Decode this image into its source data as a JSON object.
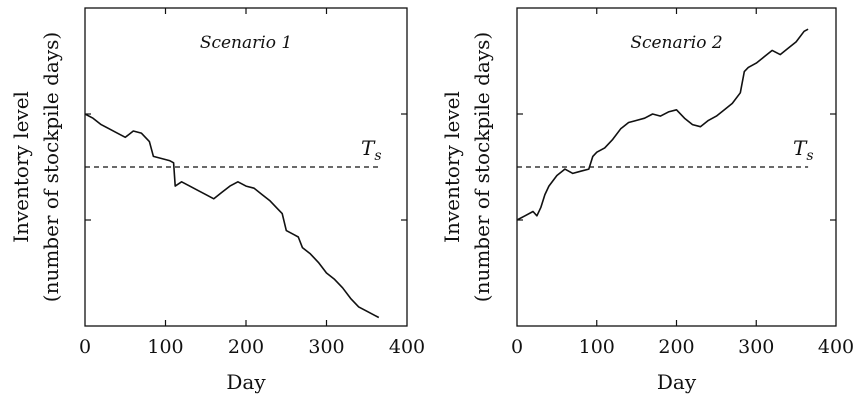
{
  "chart_data": [
    {
      "type": "line",
      "title": "Scenario 1",
      "xlabel": "Day",
      "ylabel_line1": "Inventory level",
      "ylabel_line2": "(number of stockpile days)",
      "xlim": [
        0,
        400
      ],
      "xticks": [
        "0",
        "100",
        "200",
        "300",
        "400"
      ],
      "ylim": [
        0,
        1.5
      ],
      "yticks": [
        0.5,
        1.0
      ],
      "threshold": {
        "label": "T",
        "subscript": "s",
        "value": 0.75
      },
      "series": [
        {
          "x": [
            0,
            10,
            20,
            30,
            40,
            50,
            60,
            70,
            80,
            85,
            95,
            105,
            110,
            112,
            120,
            130,
            140,
            150,
            160,
            170,
            180,
            190,
            200,
            210,
            220,
            230,
            240,
            245,
            250,
            260,
            265,
            270,
            280,
            290,
            300,
            310,
            320,
            330,
            340,
            350,
            360,
            365
          ],
          "y": [
            1.0,
            0.98,
            0.95,
            0.93,
            0.91,
            0.89,
            0.92,
            0.91,
            0.87,
            0.8,
            0.79,
            0.78,
            0.77,
            0.66,
            0.68,
            0.66,
            0.64,
            0.62,
            0.6,
            0.63,
            0.66,
            0.68,
            0.66,
            0.65,
            0.62,
            0.59,
            0.55,
            0.53,
            0.45,
            0.43,
            0.42,
            0.37,
            0.34,
            0.3,
            0.25,
            0.22,
            0.18,
            0.13,
            0.09,
            0.07,
            0.05,
            0.04
          ]
        }
      ]
    },
    {
      "type": "line",
      "title": "Scenario 2",
      "xlabel": "Day",
      "ylabel_line1": "Inventory level",
      "ylabel_line2": "(number of stockpile days)",
      "xlim": [
        0,
        400
      ],
      "xticks": [
        "0",
        "100",
        "200",
        "300",
        "400"
      ],
      "ylim": [
        0,
        1.5
      ],
      "yticks": [
        0.5,
        1.0
      ],
      "threshold": {
        "label": "T",
        "subscript": "s",
        "value": 0.75
      },
      "series": [
        {
          "x": [
            0,
            10,
            20,
            25,
            30,
            35,
            40,
            50,
            60,
            70,
            80,
            90,
            95,
            100,
            110,
            120,
            130,
            140,
            150,
            160,
            170,
            180,
            190,
            200,
            210,
            220,
            230,
            240,
            250,
            260,
            270,
            280,
            285,
            290,
            300,
            310,
            320,
            330,
            340,
            350,
            360,
            365
          ],
          "y": [
            0.5,
            0.52,
            0.54,
            0.52,
            0.56,
            0.62,
            0.66,
            0.71,
            0.74,
            0.72,
            0.73,
            0.74,
            0.8,
            0.82,
            0.84,
            0.88,
            0.93,
            0.96,
            0.97,
            0.98,
            1.0,
            0.99,
            1.01,
            1.02,
            0.98,
            0.95,
            0.94,
            0.97,
            0.99,
            1.02,
            1.05,
            1.1,
            1.2,
            1.22,
            1.24,
            1.27,
            1.3,
            1.28,
            1.31,
            1.34,
            1.39,
            1.4
          ]
        }
      ]
    }
  ]
}
